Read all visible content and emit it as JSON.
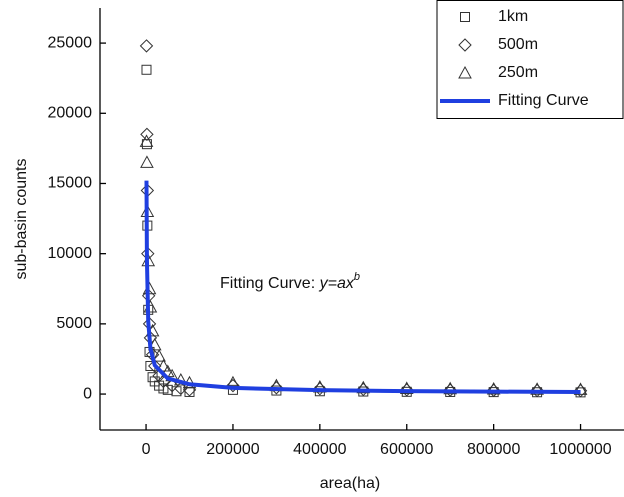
{
  "chart_data": {
    "type": "scatter",
    "xlabel": "area(ha)",
    "ylabel": "sub-basin counts",
    "annotation": {
      "prefix": "Fitting Curve: ",
      "formula": "y=ax",
      "exponent": "b"
    },
    "xlim": [
      -106000,
      1100000
    ],
    "ylim": [
      -2560,
      27500
    ],
    "xticks": [
      0,
      200000,
      400000,
      600000,
      800000,
      1000000
    ],
    "yticks": [
      0,
      5000,
      10000,
      15000,
      20000,
      25000
    ],
    "series": [
      {
        "name": "1km",
        "marker": "square",
        "color": "#333333",
        "x": [
          1000,
          2000,
          3000,
          5000,
          8000,
          10000,
          15000,
          20000,
          30000,
          40000,
          50000,
          70000,
          100000,
          200000,
          300000,
          400000,
          500000,
          600000,
          700000,
          800000,
          900000,
          1000000
        ],
        "values": [
          23100,
          17800,
          12000,
          6000,
          3000,
          2000,
          1200,
          900,
          600,
          400,
          300,
          200,
          150,
          300,
          250,
          200,
          180,
          160,
          150,
          140,
          130,
          120
        ]
      },
      {
        "name": "500m",
        "marker": "diamond",
        "color": "#333333",
        "x": [
          1000,
          2000,
          3000,
          4000,
          6000,
          8000,
          10000,
          15000,
          20000,
          30000,
          40000,
          60000,
          80000,
          100000,
          200000,
          300000,
          400000,
          500000,
          600000,
          700000,
          800000,
          900000,
          1000000
        ],
        "values": [
          24800,
          18500,
          14500,
          10000,
          7000,
          5000,
          4000,
          2800,
          2000,
          1300,
          900,
          600,
          400,
          300,
          600,
          450,
          380,
          330,
          300,
          280,
          260,
          250,
          240
        ]
      },
      {
        "name": "250m",
        "marker": "triangle",
        "color": "#333333",
        "x": [
          1000,
          2000,
          3000,
          5000,
          8000,
          10000,
          15000,
          20000,
          30000,
          40000,
          50000,
          60000,
          80000,
          100000,
          200000,
          300000,
          400000,
          500000,
          600000,
          700000,
          800000,
          900000,
          1000000
        ],
        "values": [
          18000,
          16500,
          13000,
          9500,
          7500,
          6200,
          4500,
          3500,
          2700,
          2000,
          1600,
          1300,
          1000,
          800,
          800,
          600,
          500,
          450,
          400,
          380,
          360,
          340,
          330
        ]
      },
      {
        "name": "Fitting Curve",
        "marker": "line",
        "color": "#1f3fe0",
        "x": [
          1000,
          2000,
          5000,
          10000,
          20000,
          50000,
          100000,
          200000,
          400000,
          600000,
          800000,
          1000000
        ],
        "values": [
          15200,
          9560,
          5180,
          3260,
          2050,
          1110,
          697,
          438,
          276,
          210,
          173,
          150
        ]
      }
    ],
    "legend": "top-right"
  }
}
